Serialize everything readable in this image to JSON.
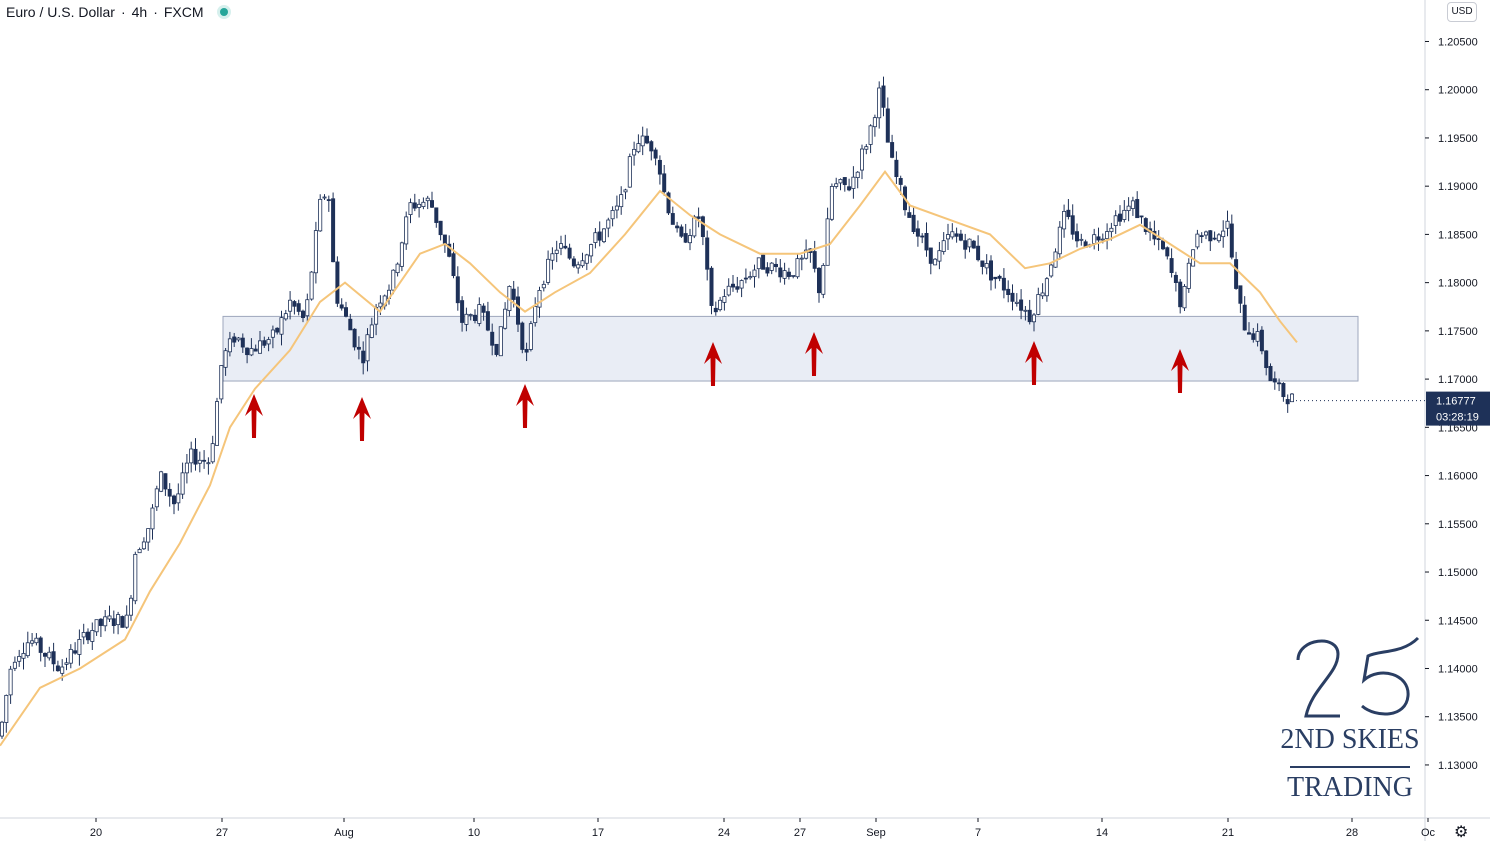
{
  "header": {
    "symbol": "Euro / U.S. Dollar",
    "interval": "4h",
    "source": "FXCM"
  },
  "currency_button": "USD",
  "countdown": "03:28:19",
  "logo": {
    "numeral": "25",
    "line1": "2ND SKIES",
    "line2": "TRADING"
  },
  "colors": {
    "candle": "#1e3158",
    "ma": "#f5c57a",
    "zone": "#e9edf5",
    "arrow": "#c00000",
    "last_price_bg": "#1e3158"
  },
  "chart_data": {
    "type": "candlestick",
    "title": "Euro / U.S. Dollar · 4h · FXCM",
    "x_ticks": [
      "20",
      "27",
      "Aug",
      "10",
      "17",
      "24",
      "27",
      "Sep",
      "7",
      "14",
      "21",
      "28",
      "Oc"
    ],
    "y_ticks": [
      "1.20500",
      "1.20000",
      "1.19500",
      "1.19000",
      "1.18500",
      "1.18000",
      "1.17500",
      "1.17000",
      "1.16500",
      "1.16000",
      "1.15500",
      "1.15000",
      "1.14500",
      "1.14000",
      "1.13500",
      "1.13000"
    ],
    "ylim": [
      1.1245,
      1.2093
    ],
    "last_price": "1.16777",
    "support_zone": [
      1.1698,
      1.1765
    ],
    "arrows_count": 7,
    "series": [
      {
        "name": "price",
        "type": "candlestick"
      },
      {
        "name": "moving average",
        "type": "line"
      }
    ],
    "price_path": [
      [
        0,
        1.133
      ],
      [
        12,
        1.141
      ],
      [
        30,
        1.143
      ],
      [
        60,
        1.14
      ],
      [
        90,
        1.144
      ],
      [
        110,
        1.145
      ],
      [
        128,
        1.145
      ],
      [
        135,
        1.152
      ],
      [
        150,
        1.155
      ],
      [
        160,
        1.16
      ],
      [
        175,
        1.157
      ],
      [
        190,
        1.162
      ],
      [
        210,
        1.1615
      ],
      [
        222,
        1.172
      ],
      [
        235,
        1.1745
      ],
      [
        250,
        1.173
      ],
      [
        275,
        1.1745
      ],
      [
        290,
        1.178
      ],
      [
        305,
        1.176
      ],
      [
        320,
        1.188
      ],
      [
        328,
        1.19
      ],
      [
        335,
        1.179
      ],
      [
        347,
        1.176
      ],
      [
        362,
        1.172
      ],
      [
        377,
        1.178
      ],
      [
        392,
        1.18
      ],
      [
        410,
        1.188
      ],
      [
        430,
        1.1885
      ],
      [
        448,
        1.183
      ],
      [
        462,
        1.176
      ],
      [
        480,
        1.177
      ],
      [
        498,
        1.173
      ],
      [
        510,
        1.18
      ],
      [
        526,
        1.172
      ],
      [
        537,
        1.179
      ],
      [
        558,
        1.184
      ],
      [
        575,
        1.182
      ],
      [
        600,
        1.185
      ],
      [
        620,
        1.188
      ],
      [
        636,
        1.195
      ],
      [
        655,
        1.194
      ],
      [
        665,
        1.189
      ],
      [
        680,
        1.184
      ],
      [
        700,
        1.187
      ],
      [
        712,
        1.1765
      ],
      [
        725,
        1.179
      ],
      [
        740,
        1.18
      ],
      [
        760,
        1.182
      ],
      [
        790,
        1.181
      ],
      [
        810,
        1.183
      ],
      [
        820,
        1.179
      ],
      [
        832,
        1.19
      ],
      [
        850,
        1.19
      ],
      [
        868,
        1.195
      ],
      [
        880,
        1.2
      ],
      [
        890,
        1.193
      ],
      [
        905,
        1.188
      ],
      [
        918,
        1.185
      ],
      [
        935,
        1.182
      ],
      [
        950,
        1.185
      ],
      [
        970,
        1.184
      ],
      [
        990,
        1.181
      ],
      [
        1010,
        1.179
      ],
      [
        1030,
        1.1765
      ],
      [
        1045,
        1.18
      ],
      [
        1065,
        1.187
      ],
      [
        1080,
        1.184
      ],
      [
        1100,
        1.185
      ],
      [
        1118,
        1.187
      ],
      [
        1133,
        1.188
      ],
      [
        1150,
        1.185
      ],
      [
        1165,
        1.183
      ],
      [
        1182,
        1.1775
      ],
      [
        1195,
        1.185
      ],
      [
        1212,
        1.185
      ],
      [
        1228,
        1.186
      ],
      [
        1236,
        1.179
      ],
      [
        1245,
        1.1755
      ],
      [
        1260,
        1.174
      ],
      [
        1270,
        1.17
      ],
      [
        1282,
        1.1685
      ],
      [
        1295,
        1.1678
      ]
    ],
    "ma_path": [
      [
        0,
        1.132
      ],
      [
        40,
        1.138
      ],
      [
        80,
        1.14
      ],
      [
        125,
        1.143
      ],
      [
        150,
        1.148
      ],
      [
        180,
        1.153
      ],
      [
        210,
        1.159
      ],
      [
        230,
        1.165
      ],
      [
        255,
        1.169
      ],
      [
        290,
        1.173
      ],
      [
        320,
        1.178
      ],
      [
        345,
        1.18
      ],
      [
        380,
        1.177
      ],
      [
        420,
        1.183
      ],
      [
        445,
        1.184
      ],
      [
        470,
        1.182
      ],
      [
        500,
        1.179
      ],
      [
        525,
        1.177
      ],
      [
        555,
        1.179
      ],
      [
        590,
        1.181
      ],
      [
        625,
        1.185
      ],
      [
        660,
        1.1895
      ],
      [
        690,
        1.187
      ],
      [
        720,
        1.185
      ],
      [
        760,
        1.183
      ],
      [
        800,
        1.183
      ],
      [
        830,
        1.184
      ],
      [
        860,
        1.188
      ],
      [
        885,
        1.1915
      ],
      [
        910,
        1.188
      ],
      [
        950,
        1.1865
      ],
      [
        990,
        1.185
      ],
      [
        1025,
        1.1815
      ],
      [
        1050,
        1.182
      ],
      [
        1080,
        1.1835
      ],
      [
        1110,
        1.1845
      ],
      [
        1140,
        1.186
      ],
      [
        1170,
        1.184
      ],
      [
        1200,
        1.182
      ],
      [
        1230,
        1.182
      ],
      [
        1260,
        1.179
      ],
      [
        1280,
        1.176
      ],
      [
        1297,
        1.1738
      ]
    ]
  }
}
